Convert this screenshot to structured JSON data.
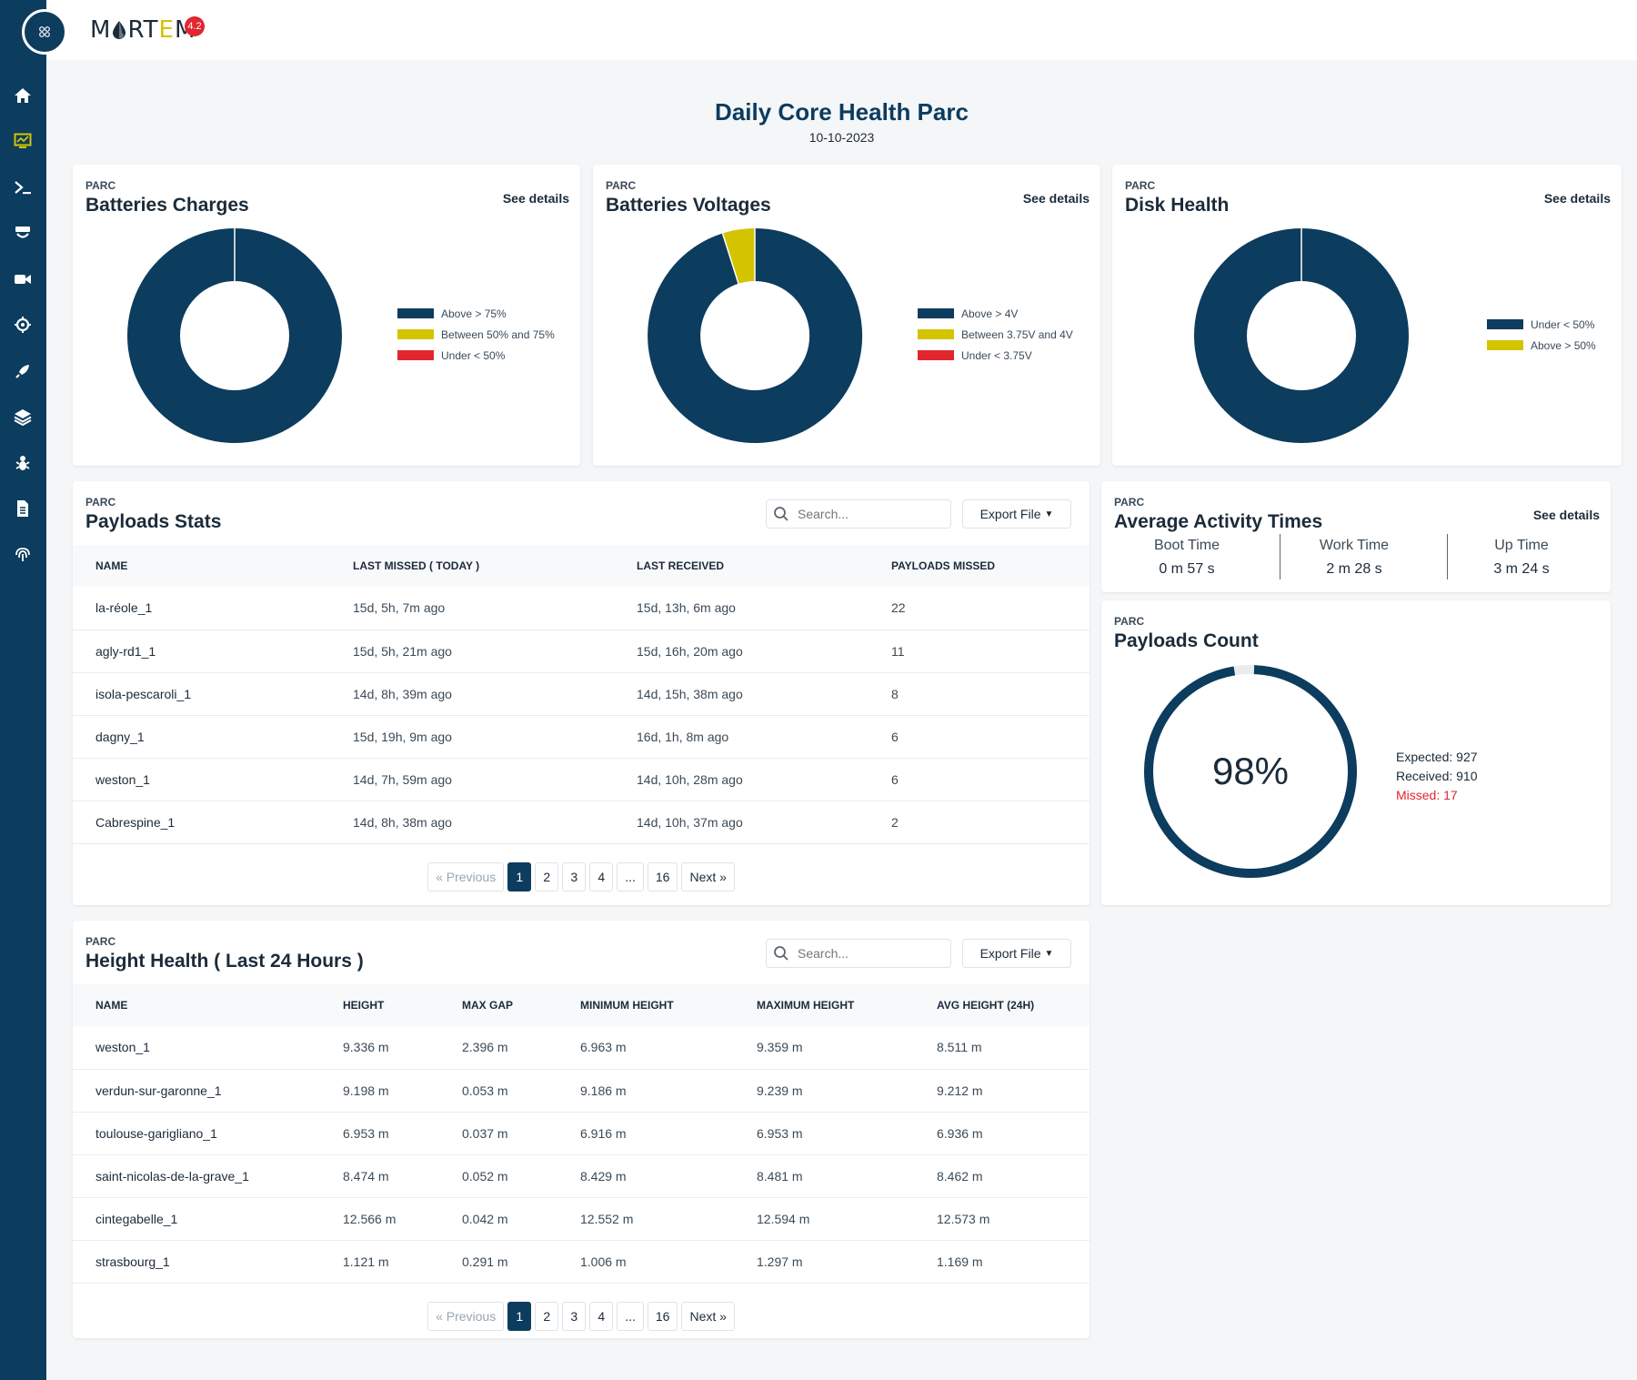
{
  "brand": {
    "name_pre": "M",
    "name_mid": "RT",
    "name_e": "E",
    "name_post": "M",
    "badge": "4.2"
  },
  "sidebar": {
    "items": [
      {
        "icon": "home-icon"
      },
      {
        "icon": "monitor-chart-icon"
      },
      {
        "icon": "terminal-icon"
      },
      {
        "icon": "device-icon"
      },
      {
        "icon": "video-camera-icon"
      },
      {
        "icon": "crosshair-icon"
      },
      {
        "icon": "rocket-icon"
      },
      {
        "icon": "layers-icon"
      },
      {
        "icon": "bug-icon"
      },
      {
        "icon": "document-icon"
      },
      {
        "icon": "fingerprint-icon"
      }
    ]
  },
  "header": {
    "title": "Daily Core Health Parc",
    "date": "10-10-2023"
  },
  "colors": {
    "navy": "#0c3c5e",
    "yellow": "#d4c400",
    "red": "#e0262f"
  },
  "cards": {
    "batteries_charges": {
      "kicker": "PARC",
      "title": "Batteries Charges",
      "see_details": "See details",
      "legend": [
        "Above > 75%",
        "Between 50% and 75%",
        "Under < 50%"
      ]
    },
    "batteries_voltages": {
      "kicker": "PARC",
      "title": "Batteries Voltages",
      "see_details": "See details",
      "legend": [
        "Above > 4V",
        "Between 3.75V and 4V",
        "Under < 3.75V"
      ]
    },
    "disk_health": {
      "kicker": "PARC",
      "title": "Disk Health",
      "see_details": "See details",
      "legend": [
        "Under < 50%",
        "Above > 50%"
      ]
    }
  },
  "chart_data": [
    {
      "type": "pie",
      "title": "Batteries Charges",
      "labels": [
        "Above > 75%",
        "Between 50% and 75%",
        "Under < 50%"
      ],
      "values": [
        100,
        0,
        0
      ]
    },
    {
      "type": "pie",
      "title": "Batteries Voltages",
      "labels": [
        "Above > 4V",
        "Between 3.75V and 4V",
        "Under < 3.75V"
      ],
      "values": [
        95,
        5,
        0
      ]
    },
    {
      "type": "pie",
      "title": "Disk Health",
      "labels": [
        "Under < 50%",
        "Above > 50%"
      ],
      "values": [
        100,
        0
      ]
    },
    {
      "type": "pie",
      "title": "Payloads Count",
      "labels": [
        "Received",
        "Missed"
      ],
      "values": [
        910,
        17
      ]
    }
  ],
  "payloads_stats": {
    "kicker": "PARC",
    "title": "Payloads Stats",
    "search_placeholder": "Search...",
    "export_label": "Export File",
    "columns": [
      "NAME",
      "LAST MISSED ( TODAY )",
      "LAST RECEIVED",
      "PAYLOADS MISSED"
    ],
    "rows": [
      [
        "la-réole_1",
        "15d, 5h, 7m ago",
        "15d, 13h, 6m ago",
        "22"
      ],
      [
        "agly-rd1_1",
        "15d, 5h, 21m ago",
        "15d, 16h, 20m ago",
        "11"
      ],
      [
        "isola-pescaroli_1",
        "14d, 8h, 39m ago",
        "14d, 15h, 38m ago",
        "8"
      ],
      [
        "dagny_1",
        "15d, 19h, 9m ago",
        "16d, 1h, 8m ago",
        "6"
      ],
      [
        "weston_1",
        "14d, 7h, 59m ago",
        "14d, 10h, 28m ago",
        "6"
      ],
      [
        "Cabrespine_1",
        "14d, 8h, 38m ago",
        "14d, 10h, 37m ago",
        "2"
      ]
    ],
    "pagination": [
      "« Previous",
      "1",
      "2",
      "3",
      "4",
      "...",
      "16",
      "Next »"
    ]
  },
  "activity_times": {
    "kicker": "PARC",
    "title": "Average Activity Times",
    "see_details": "See details",
    "items": [
      {
        "label": "Boot Time",
        "value": "0 m 57 s"
      },
      {
        "label": "Work Time",
        "value": "2 m 28 s"
      },
      {
        "label": "Up Time",
        "value": "3 m 24 s"
      }
    ]
  },
  "payloads_count": {
    "kicker": "PARC",
    "title": "Payloads Count",
    "percent": "98%",
    "expected": "Expected: 927",
    "received": "Received: 910",
    "missed": "Missed: 17",
    "ratio": 0.98
  },
  "height_health": {
    "kicker": "PARC",
    "title": "Height Health ( Last 24 Hours )",
    "search_placeholder": "Search...",
    "export_label": "Export File",
    "columns": [
      "NAME",
      "HEIGHT",
      "MAX GAP",
      "MINIMUM HEIGHT",
      "MAXIMUM HEIGHT",
      "AVG HEIGHT (24H)"
    ],
    "rows": [
      [
        "weston_1",
        "9.336 m",
        "2.396 m",
        "6.963 m",
        "9.359 m",
        "8.511 m"
      ],
      [
        "verdun-sur-garonne_1",
        "9.198 m",
        "0.053 m",
        "9.186 m",
        "9.239 m",
        "9.212 m"
      ],
      [
        "toulouse-garigliano_1",
        "6.953 m",
        "0.037 m",
        "6.916 m",
        "6.953 m",
        "6.936 m"
      ],
      [
        "saint-nicolas-de-la-grave_1",
        "8.474 m",
        "0.052 m",
        "8.429 m",
        "8.481 m",
        "8.462 m"
      ],
      [
        "cintegabelle_1",
        "12.566 m",
        "0.042 m",
        "12.552 m",
        "12.594 m",
        "12.573 m"
      ],
      [
        "strasbourg_1",
        "1.121 m",
        "0.291 m",
        "1.006 m",
        "1.297 m",
        "1.169 m"
      ]
    ],
    "pagination": [
      "« Previous",
      "1",
      "2",
      "3",
      "4",
      "...",
      "16",
      "Next »"
    ]
  }
}
